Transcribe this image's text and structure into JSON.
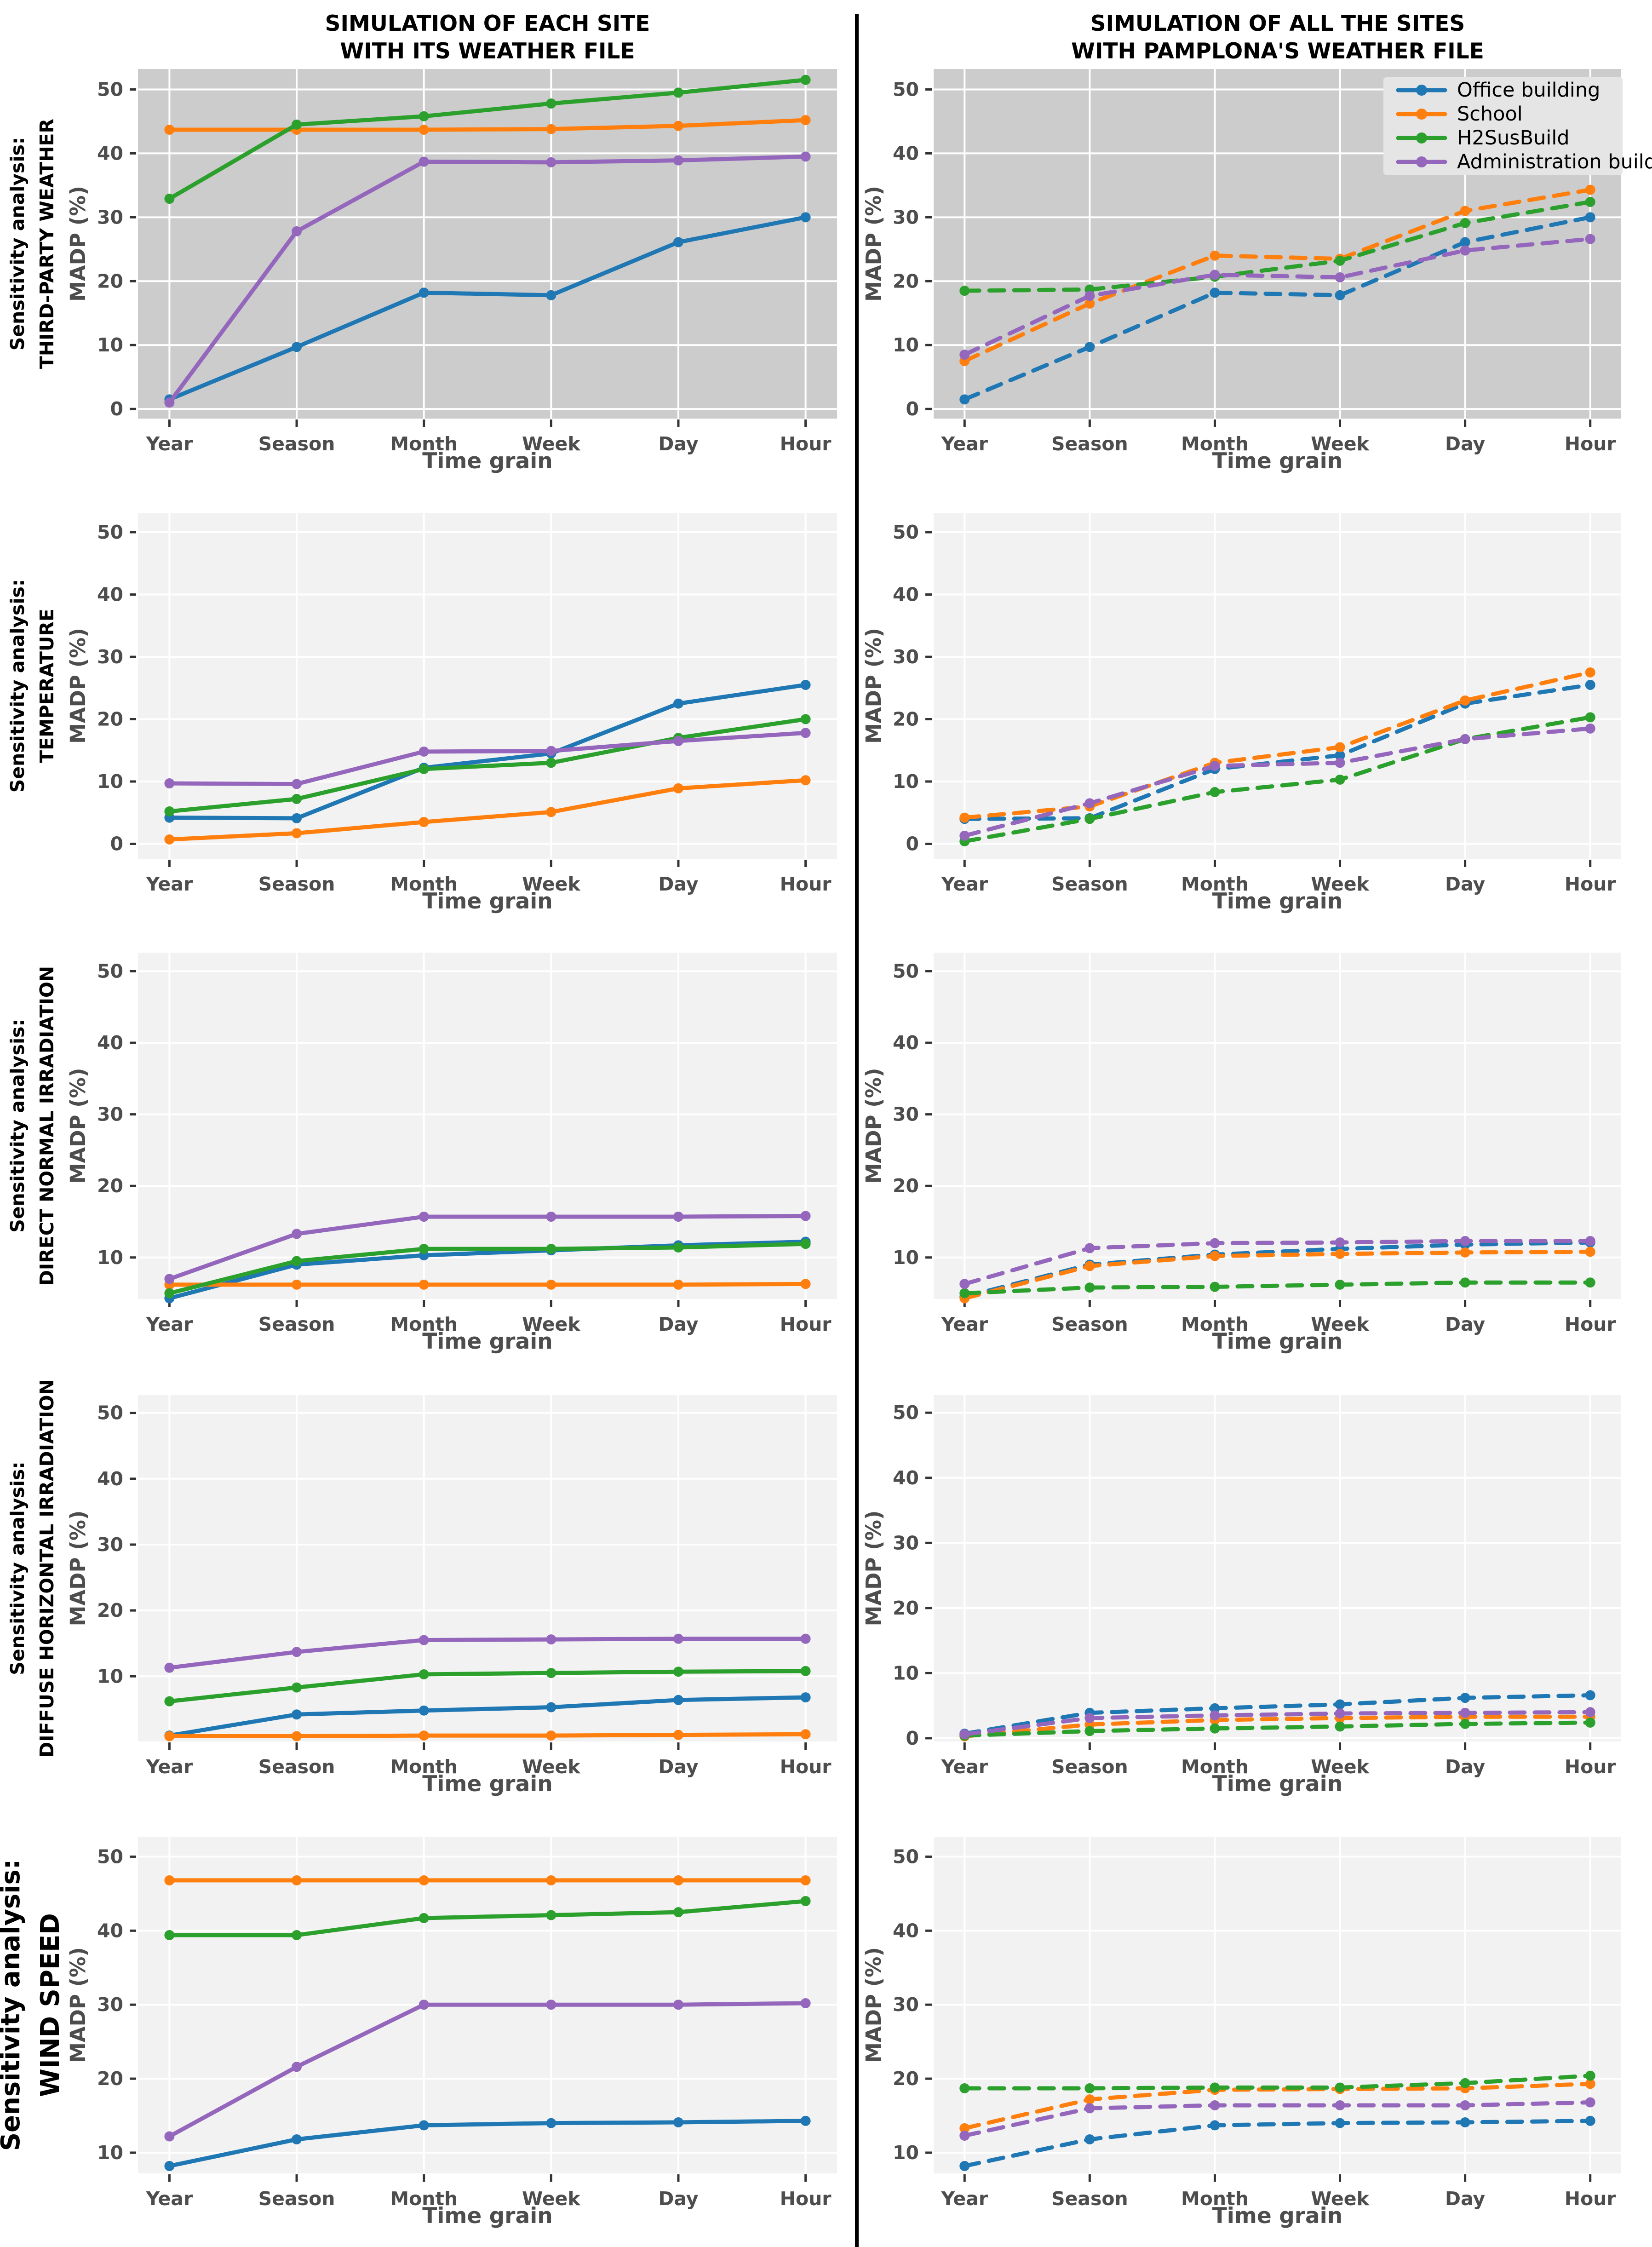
{
  "page": {
    "column_titles": [
      {
        "line1": "SIMULATION OF EACH SITE",
        "line2": "WITH ITS WEATHER FILE"
      },
      {
        "line1": "SIMULATION OF ALL THE SITES",
        "line2": "WITH PAMPLONA'S WEATHER FILE"
      }
    ]
  },
  "colors": {
    "office_building": "#1f77b4",
    "school": "#ff7f0e",
    "h2susbuild": "#2ca02c",
    "administration_building": "#9467bd",
    "panel_dark": "#cccccc",
    "panel_light": "#f2f2f2",
    "gridline": "#ffffff",
    "axis_text": "#4d4d4d",
    "tick_mark": "#333333",
    "legend_bg": "#e5e5e5",
    "divider": "#000000"
  },
  "legend": {
    "items": [
      {
        "label": "Office building",
        "color": "#1f77b4"
      },
      {
        "label": "School",
        "color": "#ff7f0e"
      },
      {
        "label": "H2SusBuild",
        "color": "#2ca02c"
      },
      {
        "label": "Administration building",
        "color": "#9467bd"
      }
    ]
  },
  "chart_data": [
    {
      "id": "third-party-weather-each-site",
      "type": "line",
      "row": 0,
      "col": 0,
      "line_style": "solid",
      "row_label_line1": "Sensitivity analysis:",
      "row_label_line2": "THIRD-PARTY WEATHER",
      "xlabel": "Time grain",
      "ylabel": "MADP (%)",
      "categories": [
        "Year",
        "Season",
        "Month",
        "Week",
        "Day",
        "Hour"
      ],
      "yticks": [
        0,
        10,
        20,
        30,
        40,
        50
      ],
      "ylim": [
        -1.5,
        53.2
      ],
      "grid": true,
      "panel_bg": "#cccccc",
      "has_legend": false,
      "series": [
        {
          "name": "Office building",
          "color": "#1f77b4",
          "values": [
            1.5,
            9.7,
            18.2,
            17.8,
            26.1,
            30.0
          ]
        },
        {
          "name": "School",
          "color": "#ff7f0e",
          "values": [
            43.7,
            43.7,
            43.7,
            43.8,
            44.3,
            45.2
          ]
        },
        {
          "name": "H2SusBuild",
          "color": "#2ca02c",
          "values": [
            32.9,
            44.5,
            45.8,
            47.8,
            49.5,
            51.5
          ]
        },
        {
          "name": "Administration building",
          "color": "#9467bd",
          "values": [
            1.0,
            27.8,
            38.7,
            38.6,
            38.9,
            39.5
          ]
        }
      ]
    },
    {
      "id": "third-party-weather-all-sites",
      "type": "line",
      "row": 0,
      "col": 1,
      "line_style": "dashed",
      "row_label_line1": null,
      "row_label_line2": null,
      "xlabel": "Time grain",
      "ylabel": "MADP (%)",
      "categories": [
        "Year",
        "Season",
        "Month",
        "Week",
        "Day",
        "Hour"
      ],
      "yticks": [
        0,
        10,
        20,
        30,
        40,
        50
      ],
      "ylim": [
        -1.5,
        53.2
      ],
      "grid": true,
      "panel_bg": "#cccccc",
      "has_legend": true,
      "legend_position": "top-right",
      "series": [
        {
          "name": "Office building",
          "color": "#1f77b4",
          "values": [
            1.5,
            9.7,
            18.2,
            17.8,
            26.1,
            30.0
          ]
        },
        {
          "name": "School",
          "color": "#ff7f0e",
          "values": [
            7.5,
            16.5,
            24.0,
            23.5,
            31.0,
            34.3
          ]
        },
        {
          "name": "H2SusBuild",
          "color": "#2ca02c",
          "values": [
            18.5,
            18.7,
            20.7,
            23.2,
            29.1,
            32.4
          ]
        },
        {
          "name": "Administration building",
          "color": "#9467bd",
          "values": [
            8.5,
            17.7,
            21.0,
            20.6,
            24.8,
            26.6
          ]
        }
      ]
    },
    {
      "id": "temperature-each-site",
      "type": "line",
      "row": 1,
      "col": 0,
      "line_style": "solid",
      "row_label_line1": "Sensitivity analysis:",
      "row_label_line2": "TEMPERATURE",
      "xlabel": "Time grain",
      "ylabel": "MADP (%)",
      "categories": [
        "Year",
        "Season",
        "Month",
        "Week",
        "Day",
        "Hour"
      ],
      "yticks": [
        0,
        10,
        20,
        30,
        40,
        50
      ],
      "ylim": [
        -2.4,
        53.1
      ],
      "grid": true,
      "panel_bg": "#f2f2f2",
      "has_legend": false,
      "series": [
        {
          "name": "Office building",
          "color": "#1f77b4",
          "values": [
            4.2,
            4.1,
            12.2,
            14.5,
            22.5,
            25.5
          ]
        },
        {
          "name": "School",
          "color": "#ff7f0e",
          "values": [
            0.7,
            1.7,
            3.5,
            5.1,
            8.9,
            10.2
          ]
        },
        {
          "name": "H2SusBuild",
          "color": "#2ca02c",
          "values": [
            5.2,
            7.2,
            12.0,
            13.0,
            17.0,
            20.0
          ]
        },
        {
          "name": "Administration building",
          "color": "#9467bd",
          "values": [
            9.7,
            9.6,
            14.8,
            14.9,
            16.5,
            17.8
          ]
        }
      ]
    },
    {
      "id": "temperature-all-sites",
      "type": "line",
      "row": 1,
      "col": 1,
      "line_style": "dashed",
      "row_label_line1": null,
      "row_label_line2": null,
      "xlabel": "Time grain",
      "ylabel": "MADP (%)",
      "categories": [
        "Year",
        "Season",
        "Month",
        "Week",
        "Day",
        "Hour"
      ],
      "yticks": [
        0,
        10,
        20,
        30,
        40,
        50
      ],
      "ylim": [
        -2.4,
        53.1
      ],
      "grid": true,
      "panel_bg": "#f2f2f2",
      "has_legend": false,
      "series": [
        {
          "name": "Office building",
          "color": "#1f77b4",
          "values": [
            4.0,
            4.1,
            12.0,
            14.2,
            22.5,
            25.5
          ]
        },
        {
          "name": "School",
          "color": "#ff7f0e",
          "values": [
            4.2,
            6.0,
            13.0,
            15.5,
            23.0,
            27.5
          ]
        },
        {
          "name": "H2SusBuild",
          "color": "#2ca02c",
          "values": [
            0.4,
            4.0,
            8.3,
            10.3,
            16.8,
            20.3
          ]
        },
        {
          "name": "Administration building",
          "color": "#9467bd",
          "values": [
            1.3,
            6.5,
            12.5,
            13.0,
            16.8,
            18.5
          ]
        }
      ]
    },
    {
      "id": "direct-normal-irradiation-each-site",
      "type": "line",
      "row": 2,
      "col": 0,
      "line_style": "solid",
      "row_label_line1": "Sensitivity analysis:",
      "row_label_line2": "DIRECT NORMAL IRRADIATION",
      "xlabel": "Time grain",
      "ylabel": "MADP (%)",
      "categories": [
        "Year",
        "Season",
        "Month",
        "Week",
        "Day",
        "Hour"
      ],
      "yticks": [
        10,
        20,
        30,
        40,
        50
      ],
      "ylim": [
        4.2,
        52.6
      ],
      "grid": true,
      "panel_bg": "#f2f2f2",
      "has_legend": false,
      "series": [
        {
          "name": "Office building",
          "color": "#1f77b4",
          "values": [
            4.3,
            9.0,
            10.3,
            11.0,
            11.7,
            12.2
          ]
        },
        {
          "name": "School",
          "color": "#ff7f0e",
          "values": [
            6.2,
            6.2,
            6.2,
            6.2,
            6.2,
            6.3
          ]
        },
        {
          "name": "H2SusBuild",
          "color": "#2ca02c",
          "values": [
            5.0,
            9.5,
            11.2,
            11.2,
            11.4,
            11.9
          ]
        },
        {
          "name": "Administration building",
          "color": "#9467bd",
          "values": [
            7.0,
            13.3,
            15.7,
            15.7,
            15.7,
            15.8
          ]
        }
      ]
    },
    {
      "id": "direct-normal-irradiation-all-sites",
      "type": "line",
      "row": 2,
      "col": 1,
      "line_style": "dashed",
      "row_label_line1": null,
      "row_label_line2": null,
      "xlabel": "Time grain",
      "ylabel": "MADP (%)",
      "categories": [
        "Year",
        "Season",
        "Month",
        "Week",
        "Day",
        "Hour"
      ],
      "yticks": [
        10,
        20,
        30,
        40,
        50
      ],
      "ylim": [
        4.2,
        52.6
      ],
      "grid": true,
      "panel_bg": "#f2f2f2",
      "has_legend": false,
      "series": [
        {
          "name": "Office building",
          "color": "#1f77b4",
          "values": [
            4.5,
            9.0,
            10.4,
            11.2,
            11.8,
            12.1
          ]
        },
        {
          "name": "School",
          "color": "#ff7f0e",
          "values": [
            4.3,
            8.8,
            10.2,
            10.5,
            10.7,
            10.8
          ]
        },
        {
          "name": "H2SusBuild",
          "color": "#2ca02c",
          "values": [
            5.0,
            5.8,
            5.9,
            6.2,
            6.5,
            6.5
          ]
        },
        {
          "name": "Administration building",
          "color": "#9467bd",
          "values": [
            6.3,
            11.3,
            12.0,
            12.1,
            12.3,
            12.3
          ]
        }
      ]
    },
    {
      "id": "diffuse-horizontal-irradiation-each-site",
      "type": "line",
      "row": 3,
      "col": 0,
      "line_style": "solid",
      "row_label_line1": "Sensitivity analysis:",
      "row_label_line2": "DIFFUSE HORIZONTAL IRRADIATION",
      "xlabel": "Time grain",
      "ylabel": "MADP (%)",
      "categories": [
        "Year",
        "Season",
        "Month",
        "Week",
        "Day",
        "Hour"
      ],
      "yticks": [
        10,
        20,
        30,
        40,
        50
      ],
      "ylim": [
        0.1,
        52.7
      ],
      "grid": true,
      "panel_bg": "#f2f2f2",
      "has_legend": false,
      "series": [
        {
          "name": "Office building",
          "color": "#1f77b4",
          "values": [
            1.0,
            4.2,
            4.8,
            5.3,
            6.4,
            6.8
          ]
        },
        {
          "name": "School",
          "color": "#ff7f0e",
          "values": [
            0.9,
            0.9,
            1.0,
            1.0,
            1.1,
            1.2
          ]
        },
        {
          "name": "H2SusBuild",
          "color": "#2ca02c",
          "values": [
            6.2,
            8.3,
            10.3,
            10.5,
            10.7,
            10.8
          ]
        },
        {
          "name": "Administration building",
          "color": "#9467bd",
          "values": [
            11.3,
            13.7,
            15.5,
            15.6,
            15.7,
            15.7
          ]
        }
      ]
    },
    {
      "id": "diffuse-horizontal-irradiation-all-sites",
      "type": "line",
      "row": 3,
      "col": 1,
      "line_style": "dashed",
      "row_label_line1": null,
      "row_label_line2": null,
      "xlabel": "Time grain",
      "ylabel": "MADP (%)",
      "categories": [
        "Year",
        "Season",
        "Month",
        "Week",
        "Day",
        "Hour"
      ],
      "yticks": [
        0,
        10,
        20,
        30,
        40,
        50
      ],
      "ylim": [
        -0.5,
        52.7
      ],
      "grid": true,
      "panel_bg": "#f2f2f2",
      "has_legend": false,
      "series": [
        {
          "name": "Office building",
          "color": "#1f77b4",
          "values": [
            0.7,
            3.9,
            4.6,
            5.2,
            6.2,
            6.6
          ]
        },
        {
          "name": "School",
          "color": "#ff7f0e",
          "values": [
            0.3,
            2.1,
            2.8,
            3.1,
            3.3,
            3.3
          ]
        },
        {
          "name": "H2SusBuild",
          "color": "#2ca02c",
          "values": [
            0.4,
            1.1,
            1.5,
            1.8,
            2.2,
            2.4
          ]
        },
        {
          "name": "Administration building",
          "color": "#9467bd",
          "values": [
            0.6,
            3.1,
            3.5,
            3.8,
            3.9,
            4.0
          ]
        }
      ]
    },
    {
      "id": "wind-speed-each-site",
      "type": "line",
      "row": 4,
      "col": 0,
      "line_style": "solid",
      "row_label_line1": "Sensitivity analysis:",
      "row_label_line2": "WIND SPEED",
      "xlabel": "Time grain",
      "ylabel": "MADP (%)",
      "categories": [
        "Year",
        "Season",
        "Month",
        "Week",
        "Day",
        "Hour"
      ],
      "yticks": [
        10,
        20,
        30,
        40,
        50
      ],
      "ylim": [
        7.2,
        52.7
      ],
      "grid": true,
      "panel_bg": "#f2f2f2",
      "has_legend": false,
      "series": [
        {
          "name": "Office building",
          "color": "#1f77b4",
          "values": [
            8.2,
            11.8,
            13.7,
            14.0,
            14.1,
            14.3
          ]
        },
        {
          "name": "School",
          "color": "#ff7f0e",
          "values": [
            46.8,
            46.8,
            46.8,
            46.8,
            46.8,
            46.8
          ]
        },
        {
          "name": "H2SusBuild",
          "color": "#2ca02c",
          "values": [
            39.4,
            39.4,
            41.7,
            42.1,
            42.5,
            44.0
          ]
        },
        {
          "name": "Administration building",
          "color": "#9467bd",
          "values": [
            12.2,
            21.6,
            30.0,
            30.0,
            30.0,
            30.2
          ]
        }
      ]
    },
    {
      "id": "wind-speed-all-sites",
      "type": "line",
      "row": 4,
      "col": 1,
      "line_style": "dashed",
      "row_label_line1": null,
      "row_label_line2": null,
      "xlabel": "Time grain",
      "ylabel": "MADP (%)",
      "categories": [
        "Year",
        "Season",
        "Month",
        "Week",
        "Day",
        "Hour"
      ],
      "yticks": [
        10,
        20,
        30,
        40,
        50
      ],
      "ylim": [
        7.2,
        52.7
      ],
      "grid": true,
      "panel_bg": "#f2f2f2",
      "has_legend": false,
      "series": [
        {
          "name": "Office building",
          "color": "#1f77b4",
          "values": [
            8.2,
            11.8,
            13.7,
            14.0,
            14.1,
            14.3
          ]
        },
        {
          "name": "School",
          "color": "#ff7f0e",
          "values": [
            13.3,
            17.2,
            18.5,
            18.6,
            18.7,
            19.3
          ]
        },
        {
          "name": "H2SusBuild",
          "color": "#2ca02c",
          "values": [
            18.7,
            18.7,
            18.8,
            18.8,
            19.4,
            20.4
          ]
        },
        {
          "name": "Administration building",
          "color": "#9467bd",
          "values": [
            12.3,
            16.0,
            16.4,
            16.4,
            16.4,
            16.8
          ]
        }
      ]
    }
  ]
}
